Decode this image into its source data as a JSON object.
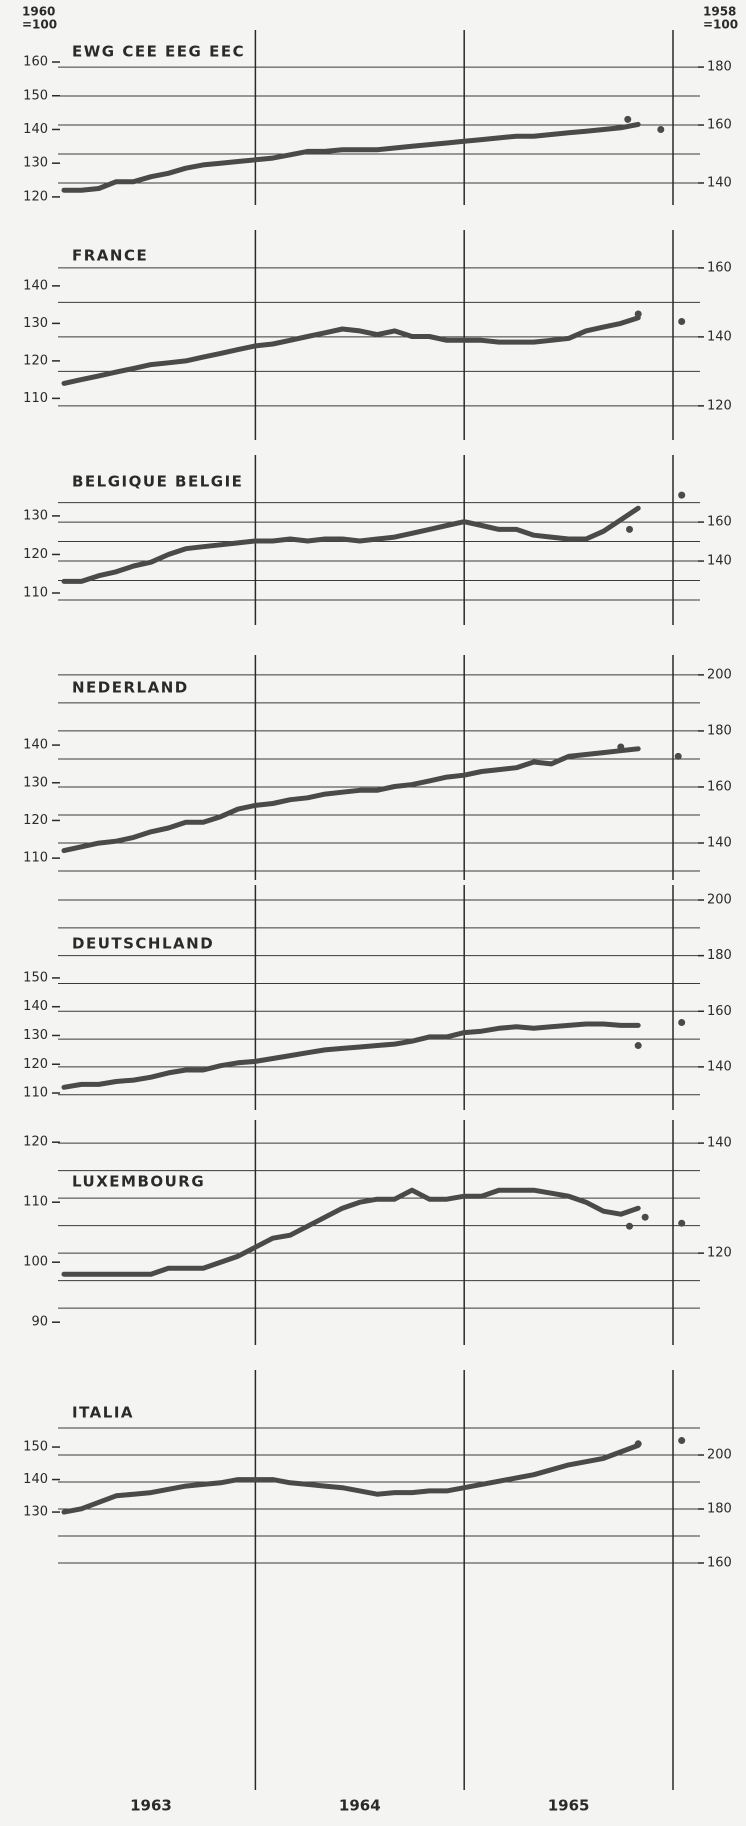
{
  "left_axis_label": [
    "1960",
    "=100"
  ],
  "right_axis_label": [
    "1958",
    "=100"
  ],
  "years": [
    "1963",
    "1964",
    "1965"
  ],
  "chart_data": [
    {
      "type": "line",
      "title": "EWG CEE EEG  EEC",
      "color": "#4a4a4a",
      "ylim": [
        117.6,
        169.5
      ],
      "yticks": [
        120,
        130,
        140,
        150,
        160
      ],
      "y2lim": [
        132.4,
        192.8
      ],
      "y2ticks": [
        140,
        160,
        180
      ],
      "y2grid": [
        140,
        150,
        160,
        170,
        180
      ],
      "values": [
        122,
        122,
        122.5,
        124.5,
        124.5,
        126,
        127,
        128.5,
        129.5,
        130,
        130.5,
        131,
        131.5,
        132.5,
        133.5,
        133.5,
        134,
        134,
        134,
        134.5,
        135,
        135.5,
        136,
        136.5,
        137,
        137.5,
        138,
        138,
        138.5,
        139,
        139.5,
        140,
        140.5,
        141.5
      ],
      "dots": {
        "x": [
          32.4,
          34.3
        ],
        "values": [
          143,
          140
        ]
      }
    },
    {
      "type": "line",
      "title": "FRANCE",
      "color": "#4a4a4a",
      "ylim": [
        98.9,
        154.9
      ],
      "yticks": [
        110,
        120,
        130,
        140
      ],
      "y2lim": [
        110.1,
        171
      ],
      "y2ticks": [
        120,
        140,
        160
      ],
      "y2grid": [
        120,
        130,
        140,
        150,
        160
      ],
      "values": [
        114,
        115,
        116,
        117,
        118,
        119,
        119.5,
        120,
        121,
        122,
        123,
        124,
        124.5,
        125.5,
        126.5,
        127.5,
        128.5,
        128,
        127,
        128,
        126.5,
        126.5,
        125.5,
        125.5,
        125.5,
        125,
        125,
        125,
        125.5,
        126,
        128,
        129,
        130,
        131.5
      ],
      "dots": {
        "x": [
          33,
          35.5
        ],
        "values": [
          132.5,
          130.5
        ]
      }
    },
    {
      "type": "line",
      "title": "BELGIQUE BELGIE",
      "color": "#4a4a4a",
      "ylim": [
        101.7,
        145.8
      ],
      "yticks": [
        110,
        120,
        130
      ],
      "y2lim": [
        107.2,
        194.4
      ],
      "y2ticks": [
        140,
        160
      ],
      "y2grid": [
        120,
        130,
        140,
        150,
        160,
        170
      ],
      "values": [
        113,
        113,
        114.5,
        115.5,
        117,
        118,
        120,
        121.5,
        122,
        122.5,
        123,
        123.5,
        123.5,
        124,
        123.5,
        124,
        124,
        123.5,
        124,
        124.5,
        125.5,
        126.5,
        127.5,
        128.5,
        127.5,
        126.5,
        126.5,
        125,
        124.5,
        124,
        124,
        126,
        129,
        132
      ],
      "dots": {
        "x": [
          32.5,
          35.5
        ],
        "values": [
          126.5,
          135.4
        ]
      }
    },
    {
      "type": "line",
      "title": "NEDERLAND",
      "color": "#4a4a4a",
      "ylim": [
        104.2,
        163.9
      ],
      "yticks": [
        110,
        120,
        130,
        140
      ],
      "y2lim": [
        126.8,
        207.1
      ],
      "y2ticks": [
        140,
        160,
        180,
        200
      ],
      "y2grid": [
        130,
        140,
        150,
        160,
        170,
        180,
        190,
        200
      ],
      "values": [
        112,
        113,
        114,
        114.5,
        115.5,
        117,
        118,
        119.5,
        119.5,
        121,
        123,
        124,
        124.5,
        125.5,
        126,
        127,
        127.5,
        128,
        128,
        129,
        129.5,
        130.5,
        131.5,
        132,
        133,
        133.5,
        134,
        135.5,
        135,
        137,
        137.5,
        138,
        138.5,
        139
      ],
      "dots": {
        "x": [
          32,
          35.3
        ],
        "values": [
          139.5,
          137
        ]
      }
    },
    {
      "type": "line",
      "title": "DEUTSCHLAND",
      "color": "#4a4a4a",
      "ylim": [
        104.1,
        182.3
      ],
      "yticks": [
        110,
        120,
        130,
        140,
        150
      ],
      "y2lim": [
        124.5,
        205.4
      ],
      "y2ticks": [
        140,
        160,
        180,
        200
      ],
      "y2grid": [
        130,
        140,
        150,
        160,
        170,
        180,
        190,
        200
      ],
      "values": [
        112,
        113,
        113,
        114,
        114.5,
        115.5,
        117,
        118,
        118,
        119.5,
        120.5,
        121,
        122,
        123,
        124,
        125,
        125.5,
        126,
        126.5,
        127,
        128,
        129.5,
        129.5,
        131,
        131.5,
        132.5,
        133,
        132.5,
        133,
        133.5,
        134,
        134,
        133.5,
        133.5
      ],
      "dots": {
        "x": [
          33,
          35.5
        ],
        "values": [
          126.5,
          134.5
        ]
      }
    },
    {
      "type": "line",
      "title": "LUXEMBOURG",
      "color": "#4a4a4a",
      "ylim": [
        86.2,
        123.7
      ],
      "yticks": [
        90,
        100,
        110,
        120
      ],
      "y2lim": [
        103.3,
        144.2
      ],
      "y2ticks": [
        120,
        140
      ],
      "y2grid": [
        110,
        115,
        120,
        125,
        130,
        135,
        140
      ],
      "values": [
        98,
        98,
        98,
        98,
        98,
        98,
        99,
        99,
        99,
        100,
        101,
        102.5,
        104,
        104.5,
        106,
        107.5,
        109,
        110,
        110.5,
        110.5,
        112,
        110.5,
        110.5,
        111,
        111,
        112,
        112,
        112,
        111.5,
        111,
        110,
        108.5,
        108,
        109
      ],
      "dots": {
        "x": [
          32.5,
          33.4,
          35.5
        ],
        "values": [
          106,
          107.5,
          106.5
        ]
      }
    },
    {
      "type": "line",
      "title": "ITALIA",
      "color": "#4a4a4a",
      "ylim": [
        44.5,
        173.7
      ],
      "yticks": [
        130,
        140,
        150
      ],
      "y2lim": [
        75.9,
        231.5
      ],
      "y2ticks": [
        160,
        180,
        200
      ],
      "y2grid": [
        160,
        170,
        180,
        190,
        200,
        210
      ],
      "values": [
        130,
        131,
        133,
        135,
        135.5,
        136,
        137,
        138,
        138.5,
        139,
        140,
        140,
        140,
        139,
        138.5,
        138,
        137.5,
        136.5,
        135.5,
        136,
        136,
        136.5,
        136.5,
        137.5,
        138.5,
        139.5,
        140.5,
        141.5,
        143,
        144.5,
        145.5,
        146.5,
        148.5,
        150.5
      ],
      "dots": {
        "x": [
          33,
          35.5
        ],
        "values": [
          151,
          152
        ]
      }
    }
  ]
}
